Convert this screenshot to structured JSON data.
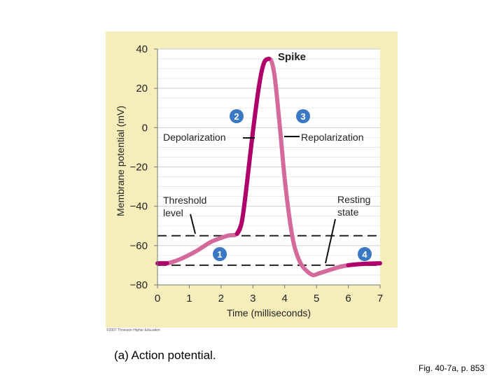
{
  "chart_data": {
    "type": "line",
    "title": "",
    "xlabel": "Time (milliseconds)",
    "ylabel": "Membrane potential (mV)",
    "xlim": [
      0,
      7
    ],
    "ylim": [
      -80,
      40
    ],
    "x_ticks": [
      0,
      1,
      2,
      3,
      4,
      5,
      6,
      7
    ],
    "y_ticks": [
      40,
      20,
      0,
      -20,
      -40,
      -60,
      -80
    ],
    "y_tick_labels": [
      "40",
      "20",
      "0",
      "−20",
      "−40",
      "−60",
      "−80"
    ],
    "grid": true,
    "series": [
      {
        "x": [
          0,
          0.3,
          0.7,
          1.2,
          1.7,
          2.2,
          2.5,
          2.65,
          2.8,
          3.0,
          3.2,
          3.35,
          3.5,
          3.6,
          3.7,
          3.85,
          4.0,
          4.15,
          4.3,
          4.5,
          4.7,
          4.9,
          5.1,
          5.4,
          5.7,
          6.0,
          6.3,
          6.6,
          7.0
        ],
        "y": [
          -69,
          -69,
          -67,
          -63,
          -58,
          -55,
          -54,
          -48,
          -30,
          -2,
          22,
          33,
          35,
          33,
          24,
          0,
          -26,
          -46,
          -60,
          -69,
          -73,
          -75,
          -74,
          -72.5,
          -71,
          -70,
          -69.5,
          -69.2,
          -69
        ]
      }
    ],
    "reference_lines": [
      {
        "label": "Threshold level",
        "y": -55
      },
      {
        "label": "Resting state",
        "y": -70
      }
    ],
    "colors": {
      "rising": "#b0006a",
      "falling": "#d46a9c",
      "background": "#f5eeba",
      "plot_area": "#ffffff",
      "badge": "#3a78c4"
    }
  },
  "annotations": {
    "spike": "Spike",
    "depolarization": "Depolarization",
    "repolarization": "Repolarization",
    "threshold_line1": "Threshold",
    "threshold_line2": "level",
    "resting_line1": "Resting",
    "resting_line2": "state"
  },
  "phases": {
    "one": "1",
    "two": "2",
    "three": "3",
    "four": "4"
  },
  "caption": "(a) Action potential.",
  "figure_ref": "Fig. 40-7a, p. 853",
  "copyright": "©2007 Thomson Higher Education"
}
